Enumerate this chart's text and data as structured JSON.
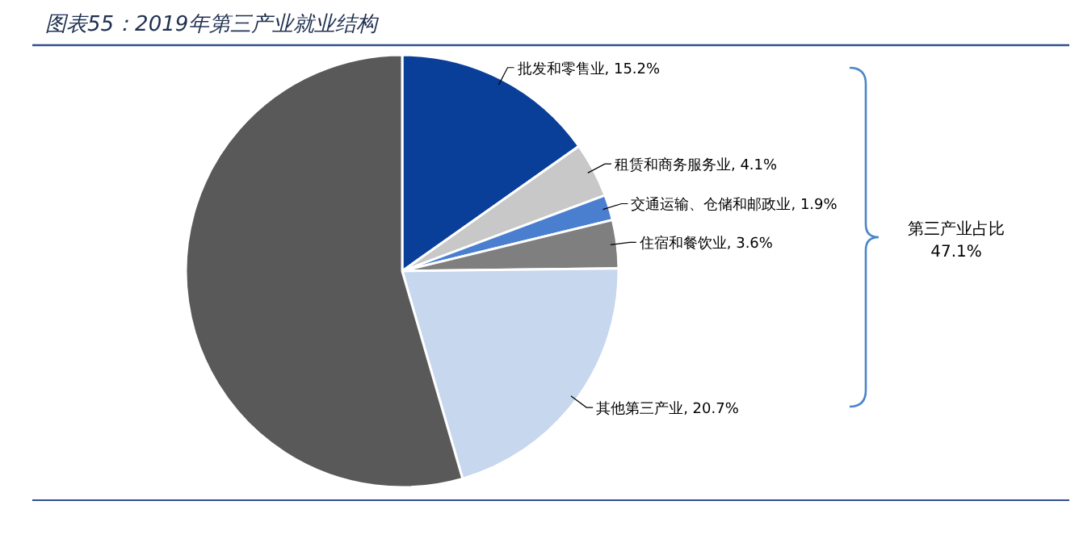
{
  "chart_data": {
    "type": "pie",
    "title": "图表55：2019年第三产业就业结构",
    "categories": [
      "批发和零售业",
      "租赁和商务服务业",
      "交通运输、仓储和邮政业",
      "住宿和餐饮业",
      "其他第三产业",
      null
    ],
    "values": [
      15.2,
      4.1,
      1.9,
      3.6,
      20.7,
      54.5
    ],
    "value_labels": [
      "15.2%",
      "4.1%",
      "1.9%",
      "3.6%",
      "20.7%",
      null
    ],
    "colors": [
      "#0a3f99",
      "#c8c8c8",
      "#4a7fd0",
      "#7f7f7f",
      "#c6d7ee",
      "#595959"
    ],
    "annotations": [
      "第三产业占比 47.1%"
    ]
  }
}
